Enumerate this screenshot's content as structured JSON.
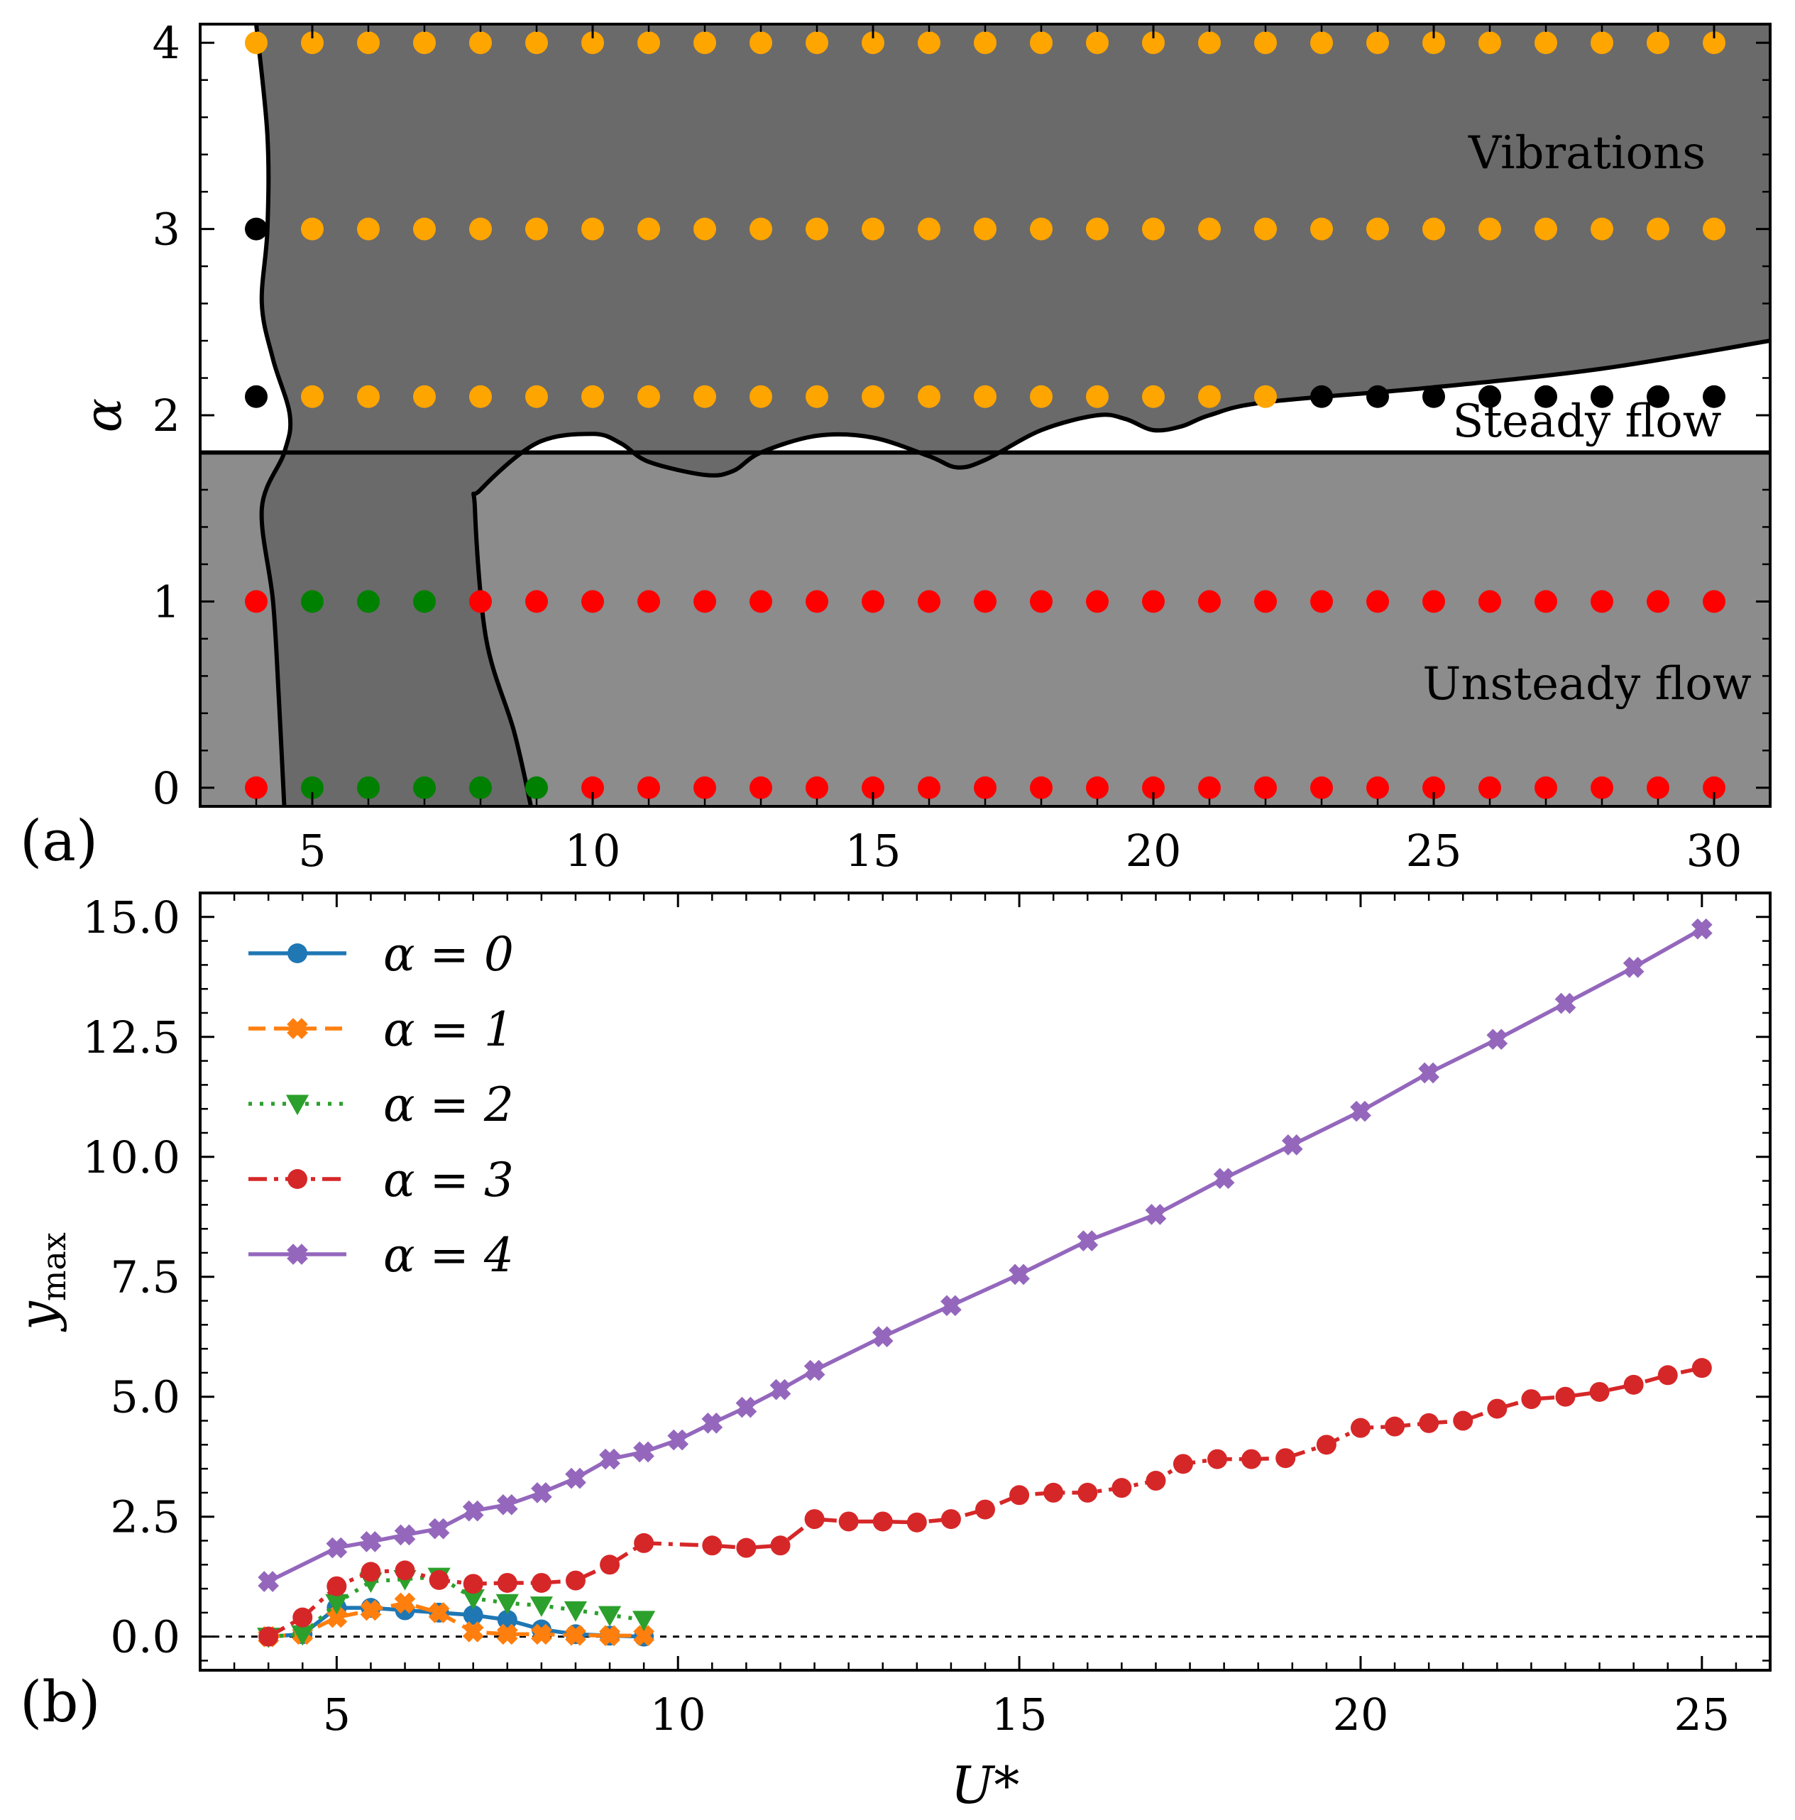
{
  "chart_data": [
    {
      "type": "scatter",
      "panel_label": "(a)",
      "xlabel": "",
      "ylabel": "α",
      "xlim": [
        3,
        31
      ],
      "ylim": [
        -0.1,
        4.1
      ],
      "x_ticks": [
        5,
        10,
        15,
        20,
        25,
        30
      ],
      "y_ticks": [
        0,
        1,
        2,
        3,
        4
      ],
      "colors": {
        "steady_bg": "#ffffff",
        "unsteady_bg": "#8c8c8c",
        "vibration_region": "#6a6a6a",
        "vibrating": "#ffa500",
        "steady": "#000000",
        "unsteady_no_vibration": "#ff0000",
        "vibrating_low_alpha": "#008000",
        "boundary": "#000000"
      },
      "regions": [
        {
          "name": "Vibrations"
        },
        {
          "name": "Steady flow"
        },
        {
          "name": "Unsteady flow"
        }
      ],
      "transition_alpha": 1.8,
      "series": [
        {
          "alpha": 4,
          "x": [
            4,
            5,
            6,
            7,
            8,
            9,
            10,
            11,
            12,
            13,
            14,
            15,
            16,
            17,
            18,
            19,
            20,
            21,
            22,
            23,
            24,
            25,
            26,
            27,
            28,
            29,
            30
          ],
          "states": [
            "vibrating",
            "vibrating",
            "vibrating",
            "vibrating",
            "vibrating",
            "vibrating",
            "vibrating",
            "vibrating",
            "vibrating",
            "vibrating",
            "vibrating",
            "vibrating",
            "vibrating",
            "vibrating",
            "vibrating",
            "vibrating",
            "vibrating",
            "vibrating",
            "vibrating",
            "vibrating",
            "vibrating",
            "vibrating",
            "vibrating",
            "vibrating",
            "vibrating",
            "vibrating",
            "vibrating"
          ]
        },
        {
          "alpha": 3,
          "x": [
            4,
            5,
            6,
            7,
            8,
            9,
            10,
            11,
            12,
            13,
            14,
            15,
            16,
            17,
            18,
            19,
            20,
            21,
            22,
            23,
            24,
            25,
            26,
            27,
            28,
            29,
            30
          ],
          "states": [
            "steady",
            "vibrating",
            "vibrating",
            "vibrating",
            "vibrating",
            "vibrating",
            "vibrating",
            "vibrating",
            "vibrating",
            "vibrating",
            "vibrating",
            "vibrating",
            "vibrating",
            "vibrating",
            "vibrating",
            "vibrating",
            "vibrating",
            "vibrating",
            "vibrating",
            "vibrating",
            "vibrating",
            "vibrating",
            "vibrating",
            "vibrating",
            "vibrating",
            "vibrating",
            "vibrating"
          ]
        },
        {
          "alpha": 2.1,
          "x": [
            4,
            5,
            6,
            7,
            8,
            9,
            10,
            11,
            12,
            13,
            14,
            15,
            16,
            17,
            18,
            19,
            20,
            21,
            22,
            23,
            24,
            25,
            26,
            27,
            28,
            29,
            30
          ],
          "states": [
            "steady",
            "vibrating",
            "vibrating",
            "vibrating",
            "vibrating",
            "vibrating",
            "vibrating",
            "vibrating",
            "vibrating",
            "vibrating",
            "vibrating",
            "vibrating",
            "vibrating",
            "vibrating",
            "vibrating",
            "vibrating",
            "vibrating",
            "vibrating",
            "vibrating",
            "steady",
            "steady",
            "steady",
            "steady",
            "steady",
            "steady",
            "steady",
            "steady"
          ]
        },
        {
          "alpha": 1,
          "x": [
            4,
            5,
            6,
            7,
            8,
            9,
            10,
            11,
            12,
            13,
            14,
            15,
            16,
            17,
            18,
            19,
            20,
            21,
            22,
            23,
            24,
            25,
            26,
            27,
            28,
            29,
            30
          ],
          "states": [
            "unsteady_no_vibration",
            "vibrating_low_alpha",
            "vibrating_low_alpha",
            "vibrating_low_alpha",
            "unsteady_no_vibration",
            "unsteady_no_vibration",
            "unsteady_no_vibration",
            "unsteady_no_vibration",
            "unsteady_no_vibration",
            "unsteady_no_vibration",
            "unsteady_no_vibration",
            "unsteady_no_vibration",
            "unsteady_no_vibration",
            "unsteady_no_vibration",
            "unsteady_no_vibration",
            "unsteady_no_vibration",
            "unsteady_no_vibration",
            "unsteady_no_vibration",
            "unsteady_no_vibration",
            "unsteady_no_vibration",
            "unsteady_no_vibration",
            "unsteady_no_vibration",
            "unsteady_no_vibration",
            "unsteady_no_vibration",
            "unsteady_no_vibration",
            "unsteady_no_vibration",
            "unsteady_no_vibration"
          ]
        },
        {
          "alpha": 0,
          "x": [
            4,
            5,
            6,
            7,
            8,
            9,
            10,
            11,
            12,
            13,
            14,
            15,
            16,
            17,
            18,
            19,
            20,
            21,
            22,
            23,
            24,
            25,
            26,
            27,
            28,
            29,
            30
          ],
          "states": [
            "unsteady_no_vibration",
            "vibrating_low_alpha",
            "vibrating_low_alpha",
            "vibrating_low_alpha",
            "vibrating_low_alpha",
            "vibrating_low_alpha",
            "unsteady_no_vibration",
            "unsteady_no_vibration",
            "unsteady_no_vibration",
            "unsteady_no_vibration",
            "unsteady_no_vibration",
            "unsteady_no_vibration",
            "unsteady_no_vibration",
            "unsteady_no_vibration",
            "unsteady_no_vibration",
            "unsteady_no_vibration",
            "unsteady_no_vibration",
            "unsteady_no_vibration",
            "unsteady_no_vibration",
            "unsteady_no_vibration",
            "unsteady_no_vibration",
            "unsteady_no_vibration",
            "unsteady_no_vibration",
            "unsteady_no_vibration",
            "unsteady_no_vibration",
            "unsteady_no_vibration",
            "unsteady_no_vibration"
          ]
        }
      ],
      "vibration_boundary_left": [
        [
          4.0,
          4.1
        ],
        [
          4.2,
          3.5
        ],
        [
          4.2,
          3.0
        ],
        [
          4.1,
          2.6
        ],
        [
          4.3,
          2.3
        ],
        [
          4.6,
          2.0
        ],
        [
          4.5,
          1.8
        ],
        [
          4.1,
          1.5
        ],
        [
          4.3,
          1.0
        ],
        [
          4.4,
          0.5
        ],
        [
          4.5,
          -0.1
        ]
      ],
      "vibration_boundary_right": [
        [
          8.9,
          -0.1
        ],
        [
          8.6,
          0.3
        ],
        [
          8.1,
          0.8
        ],
        [
          7.9,
          1.5
        ],
        [
          8.0,
          1.6
        ],
        [
          9.0,
          1.85
        ],
        [
          10.0,
          1.9
        ],
        [
          10.5,
          1.85
        ],
        [
          11.0,
          1.75
        ],
        [
          12.0,
          1.68
        ],
        [
          12.5,
          1.7
        ],
        [
          13.0,
          1.8
        ],
        [
          14.0,
          1.89
        ],
        [
          15.0,
          1.88
        ],
        [
          16.0,
          1.78
        ],
        [
          16.5,
          1.72
        ],
        [
          17.0,
          1.76
        ],
        [
          18.0,
          1.92
        ],
        [
          19.0,
          2.0
        ],
        [
          19.5,
          1.98
        ],
        [
          20.0,
          1.92
        ],
        [
          20.5,
          1.94
        ],
        [
          21.0,
          2.0
        ],
        [
          22.0,
          2.07
        ],
        [
          25.0,
          2.15
        ],
        [
          28.0,
          2.25
        ],
        [
          31.0,
          2.4
        ]
      ]
    },
    {
      "type": "line",
      "panel_label": "(b)",
      "xlabel": "U*",
      "ylabel": "y_max",
      "ylabel_main": "y",
      "ylabel_sub": "max",
      "xlim": [
        3,
        26
      ],
      "ylim": [
        -0.7,
        15.5
      ],
      "x_ticks": [
        5,
        10,
        15,
        20,
        25
      ],
      "y_ticks": [
        0.0,
        2.5,
        5.0,
        7.5,
        10.0,
        12.5,
        15.0
      ],
      "y_tick_labels": [
        "0.0",
        "2.5",
        "5.0",
        "7.5",
        "10.0",
        "12.5",
        "15.0"
      ],
      "zero_line": true,
      "legend_position": "top-left",
      "series": [
        {
          "name": "α = 0",
          "color": "#1f77b4",
          "marker": "circle",
          "linestyle": "solid",
          "x": [
            4,
            4.5,
            5,
            5.5,
            6,
            6.5,
            7,
            7.5,
            8,
            8.5,
            9,
            9.5
          ],
          "y": [
            0.0,
            0.05,
            0.6,
            0.6,
            0.55,
            0.5,
            0.45,
            0.35,
            0.15,
            0.05,
            0.02,
            0.0
          ]
        },
        {
          "name": "α = 1",
          "color": "#ff7f0e",
          "marker": "plus",
          "linestyle": "dashed",
          "x": [
            4,
            4.5,
            5,
            5.5,
            6,
            6.5,
            7,
            7.5,
            8,
            8.5,
            9,
            9.5
          ],
          "y": [
            0.0,
            0.05,
            0.4,
            0.55,
            0.7,
            0.5,
            0.1,
            0.05,
            0.05,
            0.03,
            0.02,
            0.02
          ]
        },
        {
          "name": "α = 2",
          "color": "#2ca02c",
          "marker": "triangle-down",
          "linestyle": "dotted",
          "x": [
            4,
            4.5,
            5,
            5.5,
            6,
            6.5,
            7,
            7.5,
            8,
            8.5,
            9,
            9.5
          ],
          "y": [
            0.0,
            0.05,
            0.7,
            1.15,
            1.2,
            1.25,
            0.8,
            0.7,
            0.65,
            0.55,
            0.45,
            0.35
          ]
        },
        {
          "name": "α = 3",
          "color": "#d62728",
          "marker": "circle",
          "linestyle": "dashdot",
          "x": [
            4,
            4.5,
            5,
            5.5,
            6,
            6.5,
            7,
            7.5,
            8,
            8.5,
            9,
            9.5,
            10.5,
            11,
            11.5,
            12,
            12.5,
            13,
            13.5,
            14,
            14.5,
            15,
            15.5,
            16,
            16.5,
            17,
            17.4,
            17.9,
            18.4,
            18.9,
            19.5,
            20,
            20.5,
            21,
            21.5,
            22,
            22.5,
            23,
            23.5,
            24,
            24.5,
            25
          ],
          "y": [
            0.0,
            0.4,
            1.05,
            1.35,
            1.38,
            1.18,
            1.1,
            1.12,
            1.12,
            1.17,
            1.5,
            1.95,
            1.9,
            1.85,
            1.9,
            2.45,
            2.4,
            2.4,
            2.38,
            2.45,
            2.65,
            2.95,
            3.0,
            3.0,
            3.1,
            3.25,
            3.6,
            3.7,
            3.7,
            3.72,
            4.0,
            4.35,
            4.38,
            4.45,
            4.5,
            4.75,
            4.95,
            5.0,
            5.1,
            5.25,
            5.45,
            5.6
          ]
        },
        {
          "name": "α = 4",
          "color": "#9467bd",
          "marker": "plus",
          "linestyle": "solid",
          "x": [
            4,
            5,
            5.5,
            6,
            6.5,
            7,
            7.5,
            8,
            8.5,
            9,
            9.5,
            10,
            10.5,
            11,
            11.5,
            12,
            13,
            14,
            15,
            16,
            17,
            18,
            19,
            20,
            21,
            22,
            23,
            24,
            25
          ],
          "y": [
            1.15,
            1.85,
            1.98,
            2.12,
            2.25,
            2.62,
            2.75,
            3.0,
            3.3,
            3.7,
            3.85,
            4.1,
            4.45,
            4.78,
            5.15,
            5.55,
            6.25,
            6.9,
            7.55,
            8.25,
            8.8,
            9.55,
            10.25,
            10.95,
            11.75,
            12.45,
            13.2,
            13.95,
            14.75
          ]
        }
      ]
    }
  ]
}
